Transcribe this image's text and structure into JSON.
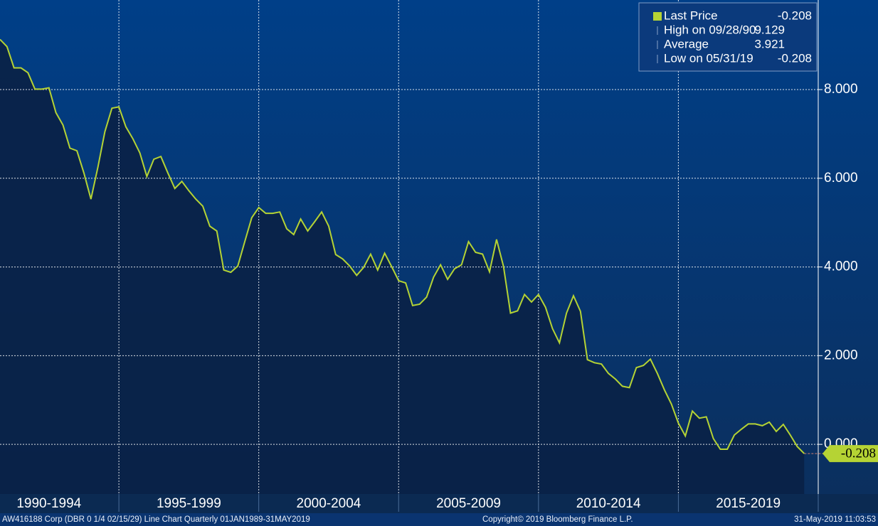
{
  "chart_data": {
    "type": "line",
    "legend": [
      {
        "name": "Last Price",
        "value": -0.208
      },
      {
        "name": "High on 09/28/90",
        "value": 9.129
      },
      {
        "name": "Average",
        "value": 3.921
      },
      {
        "name": "Low on 05/31/19",
        "value": -0.208
      }
    ],
    "legend_position": "upper right",
    "x": [
      1990.75,
      1991,
      1991.25,
      1991.5,
      1991.75,
      1992,
      1992.25,
      1992.5,
      1992.75,
      1993,
      1993.25,
      1993.5,
      1993.75,
      1994,
      1994.25,
      1994.5,
      1994.75,
      1995,
      1995.25,
      1995.5,
      1995.75,
      1996,
      1996.25,
      1996.5,
      1996.75,
      1997,
      1997.25,
      1997.5,
      1997.75,
      1998,
      1998.25,
      1998.5,
      1998.75,
      1999,
      1999.25,
      1999.5,
      1999.75,
      2000,
      2000.25,
      2000.5,
      2000.75,
      2001,
      2001.25,
      2001.5,
      2001.75,
      2002,
      2002.25,
      2002.5,
      2002.75,
      2003,
      2003.25,
      2003.5,
      2003.75,
      2004,
      2004.25,
      2004.5,
      2004.75,
      2005,
      2005.25,
      2005.5,
      2005.75,
      2006,
      2006.25,
      2006.5,
      2006.75,
      2007,
      2007.25,
      2007.5,
      2007.75,
      2008,
      2008.25,
      2008.5,
      2008.75,
      2009,
      2009.25,
      2009.5,
      2009.75,
      2010,
      2010.25,
      2010.5,
      2010.75,
      2011,
      2011.25,
      2011.5,
      2011.75,
      2012,
      2012.25,
      2012.5,
      2012.75,
      2013,
      2013.25,
      2013.5,
      2013.75,
      2014,
      2014.25,
      2014.5,
      2014.75,
      2015,
      2015.25,
      2015.5,
      2015.75,
      2016,
      2016.25,
      2016.5,
      2016.75,
      2017,
      2017.25,
      2017.5,
      2017.75,
      2018,
      2018.25,
      2018.5,
      2018.75,
      2019,
      2019.25,
      2019.5
    ],
    "series": [
      {
        "name": "Last Price",
        "color": "#b5d334",
        "values": [
          9.13,
          8.97,
          8.49,
          8.49,
          8.38,
          8.01,
          8.01,
          8.04,
          7.48,
          7.2,
          6.68,
          6.62,
          6.12,
          5.53,
          6.25,
          7.05,
          7.58,
          7.61,
          7.16,
          6.89,
          6.57,
          6.04,
          6.43,
          6.49,
          6.12,
          5.77,
          5.93,
          5.72,
          5.53,
          5.37,
          4.92,
          4.81,
          3.93,
          3.88,
          4.02,
          4.57,
          5.11,
          5.34,
          5.21,
          5.21,
          5.24,
          4.86,
          4.73,
          5.08,
          4.81,
          5.02,
          5.24,
          4.92,
          4.28,
          4.18,
          4.02,
          3.81,
          3.99,
          4.29,
          3.93,
          4.31,
          4.01,
          3.69,
          3.64,
          3.13,
          3.16,
          3.32,
          3.77,
          4.05,
          3.72,
          3.96,
          4.05,
          4.57,
          4.33,
          4.29,
          3.89,
          4.62,
          4.01,
          2.96,
          3.01,
          3.38,
          3.21,
          3.38,
          3.09,
          2.61,
          2.29,
          2.96,
          3.35,
          3.0,
          1.91,
          1.84,
          1.81,
          1.6,
          1.47,
          1.31,
          1.28,
          1.73,
          1.78,
          1.92,
          1.6,
          1.23,
          0.91,
          0.48,
          0.19,
          0.75,
          0.59,
          0.62,
          0.13,
          -0.11,
          -0.11,
          0.21,
          0.34,
          0.46,
          0.46,
          0.42,
          0.5,
          0.29,
          0.45,
          0.21,
          -0.05,
          -0.208
        ]
      }
    ],
    "xlim": [
      1990.75,
      2020.0
    ],
    "xticks": [
      {
        "value": 1992.5,
        "label": "1990-1994"
      },
      {
        "value": 1997.5,
        "label": "1995-1999"
      },
      {
        "value": 2002.5,
        "label": "2000-2004"
      },
      {
        "value": 2007.5,
        "label": "2005-2009"
      },
      {
        "value": 2012.5,
        "label": "2010-2014"
      },
      {
        "value": 2017.5,
        "label": "2015-2019"
      }
    ],
    "xgrid": [
      1995,
      2000,
      2005,
      2010,
      2015,
      2020
    ],
    "ylim": [
      -1.12,
      10.02
    ],
    "yticks": [
      {
        "value": 0,
        "label": "0.000"
      },
      {
        "value": 2,
        "label": "2.000"
      },
      {
        "value": 4,
        "label": "4.000"
      },
      {
        "value": 6,
        "label": "6.000"
      },
      {
        "value": 8,
        "label": "8.000"
      }
    ],
    "grid": true,
    "footer": {
      "description": "AW416188 Corp (DBR 0 1/4 02/15/29) Line Chart  Quarterly 01JAN1989-31MAY2019",
      "copyright": "Copyright© 2019 Bloomberg Finance L.P.",
      "timestamp": "31-May-2019 11:03:53"
    }
  }
}
